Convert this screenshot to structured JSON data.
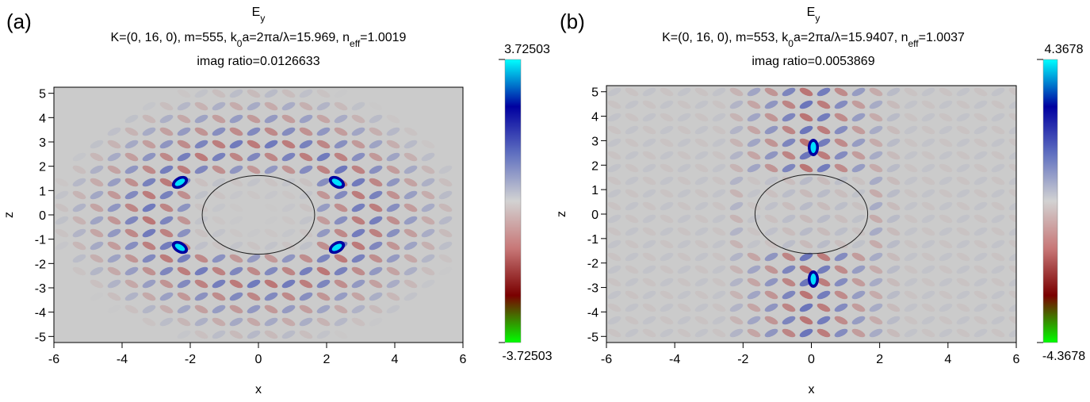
{
  "chart_data": [
    {
      "type": "heatmap",
      "panel_label": "(a)",
      "title": "E",
      "title_sub": "y",
      "subtitle_parts": [
        "K=(0, 16, 0), m=555, k",
        "0",
        "a=2πa/λ=15.969, n",
        "eff",
        "=1.0019"
      ],
      "note": "imag ratio=0.0126633",
      "xlabel": "x",
      "ylabel": "z",
      "xlim": [
        -6,
        6
      ],
      "xticks": [
        -6,
        -4,
        -2,
        0,
        2,
        4,
        6
      ],
      "ylim": [
        -5.25,
        5.25
      ],
      "yticks": [
        -5,
        -4,
        -3,
        -2,
        -1,
        0,
        1,
        2,
        3,
        4,
        5
      ],
      "clim": [
        -3.72503,
        3.72503
      ],
      "colormap": [
        "#00ff00",
        "#7a0000",
        "#c87878",
        "#d2d2d2",
        "#6070c0",
        "#0000a0",
        "#00ffff"
      ]
    },
    {
      "type": "heatmap",
      "panel_label": "(b)",
      "title": "E",
      "title_sub": "y",
      "subtitle_parts": [
        "K=(0, 16, 0), m=553, k",
        "0",
        "a=2πa/λ=15.9407, n",
        "eff",
        "=1.0037"
      ],
      "note": "imag ratio=0.0053869",
      "xlabel": "x",
      "ylabel": "z",
      "xlim": [
        -6,
        6
      ],
      "xticks": [
        -6,
        -4,
        -2,
        0,
        2,
        4,
        6
      ],
      "ylim": [
        -5.25,
        5.25
      ],
      "yticks": [
        -5,
        -4,
        -3,
        -2,
        -1,
        0,
        1,
        2,
        3,
        4,
        5
      ],
      "clim": [
        -4.3678,
        4.3678
      ],
      "colormap": [
        "#00ff00",
        "#7a0000",
        "#c87878",
        "#d2d2d2",
        "#6070c0",
        "#0000a0",
        "#00ffff"
      ]
    }
  ]
}
